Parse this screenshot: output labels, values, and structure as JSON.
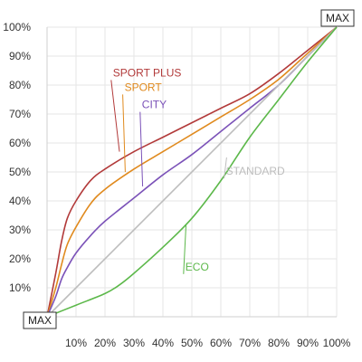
{
  "chart_data": {
    "type": "line",
    "xlabel": "",
    "ylabel": "",
    "title": "",
    "xlim": [
      0,
      100
    ],
    "ylim": [
      0,
      100
    ],
    "grid": true,
    "x_ticks": [
      "10%",
      "20%",
      "30%",
      "40%",
      "50%",
      "60%",
      "70%",
      "80%",
      "90%",
      "100%"
    ],
    "y_ticks": [
      "10%",
      "20%",
      "30%",
      "40%",
      "50%",
      "60%",
      "70%",
      "80%",
      "90%",
      "100%"
    ],
    "corner_labels": {
      "origin": "MAX",
      "top_right": "MAX"
    },
    "series": [
      {
        "name": "SPORT PLUS",
        "color": "#b23a3a",
        "x": [
          0,
          3,
          5,
          7,
          10,
          15,
          20,
          30,
          40,
          50,
          60,
          70,
          80,
          90,
          100
        ],
        "y": [
          0,
          15,
          26,
          34,
          40,
          47,
          51,
          57,
          62,
          67,
          72,
          77,
          84,
          92,
          100
        ]
      },
      {
        "name": "SPORT",
        "color": "#e08a1e",
        "x": [
          0,
          3,
          5,
          7,
          10,
          15,
          20,
          30,
          40,
          50,
          60,
          70,
          80,
          90,
          100
        ],
        "y": [
          0,
          10,
          18,
          25,
          31,
          39,
          44,
          51,
          57,
          63,
          69,
          75,
          82,
          91,
          100
        ]
      },
      {
        "name": "CITY",
        "color": "#7b52b8",
        "x": [
          0,
          3,
          5,
          7,
          10,
          15,
          20,
          30,
          40,
          50,
          60,
          70,
          80,
          90,
          100
        ],
        "y": [
          0,
          7,
          13,
          17,
          22,
          28,
          33,
          41,
          49,
          56,
          64,
          72,
          80,
          90,
          100
        ]
      },
      {
        "name": "STANDARD",
        "color": "#bdbdbd",
        "x": [
          0,
          100
        ],
        "y": [
          0,
          100
        ]
      },
      {
        "name": "ECO",
        "color": "#5cb84a",
        "x": [
          0,
          10,
          20,
          25,
          30,
          40,
          50,
          60,
          70,
          80,
          90,
          100
        ],
        "y": [
          0,
          4,
          8,
          11,
          15,
          24,
          34,
          47,
          62,
          75,
          88,
          100
        ]
      }
    ],
    "series_label_anchor": [
      {
        "x": 25,
        "y": 57,
        "label_x": 24,
        "label_y": 83
      },
      {
        "x": 27,
        "y": 50,
        "label_x": 28,
        "label_y": 78
      },
      {
        "x": 33,
        "y": 45,
        "label_x": 34,
        "label_y": 72
      },
      {
        "x": 62,
        "y": 55,
        "label_x": 63,
        "label_y": 49
      },
      {
        "x": 48,
        "y": 32,
        "label_x": 49,
        "label_y": 16
      }
    ]
  }
}
